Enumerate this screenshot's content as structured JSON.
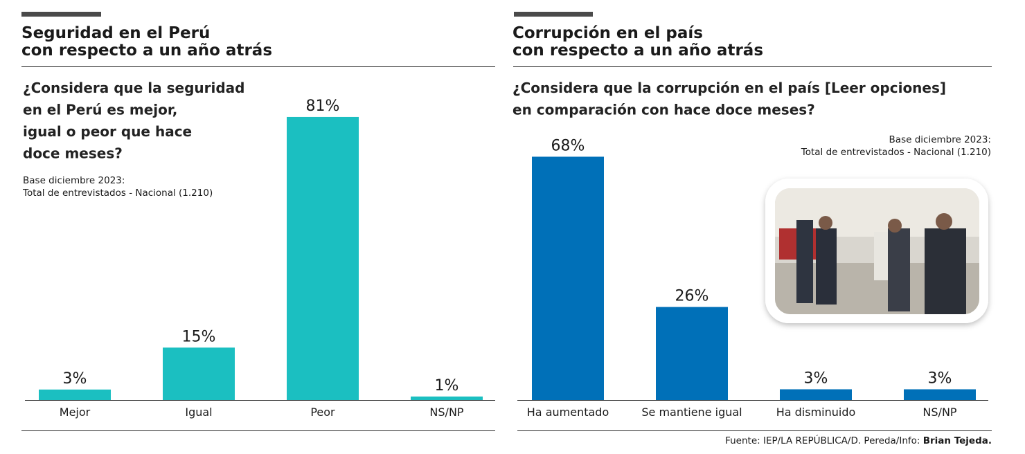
{
  "chart_data": [
    {
      "type": "bar",
      "title": [
        "Seguridad en el Perú",
        "con respecto a un año atrás"
      ],
      "question": [
        "¿Considera que la seguridad",
        "en el Perú es mejor,",
        "igual o peor que hace",
        "doce meses?"
      ],
      "note": [
        "Base diciembre 2023:",
        "Total de entrevistados - Nacional (1.210)"
      ],
      "categories": [
        "Mejor",
        "Igual",
        "Peor",
        "NS/NP"
      ],
      "values": [
        3,
        15,
        81,
        1
      ],
      "value_labels": [
        "3%",
        "15%",
        "81%",
        "1%"
      ],
      "color": "#1bbfc1"
    },
    {
      "type": "bar",
      "title": [
        "Corrupción en el país",
        "con respecto a un año atrás"
      ],
      "question": [
        "¿Considera que la corrupción en el país [Leer opciones]",
        "en comparación con hace doce meses?"
      ],
      "note": [
        "Base diciembre 2023:",
        "Total de entrevistados - Nacional (1.210)"
      ],
      "categories": [
        "Ha aumentado",
        "Se mantiene igual",
        "Ha disminuido",
        "NS/NP"
      ],
      "values": [
        68,
        26,
        3,
        3
      ],
      "value_labels": [
        "68%",
        "26%",
        "3%",
        "3%"
      ],
      "color": "#0070b8"
    }
  ],
  "source": {
    "text": "Fuente: IEP/LA REPÚBLICA/D. Pereda/Info: ",
    "author": "Brian Tejeda."
  }
}
